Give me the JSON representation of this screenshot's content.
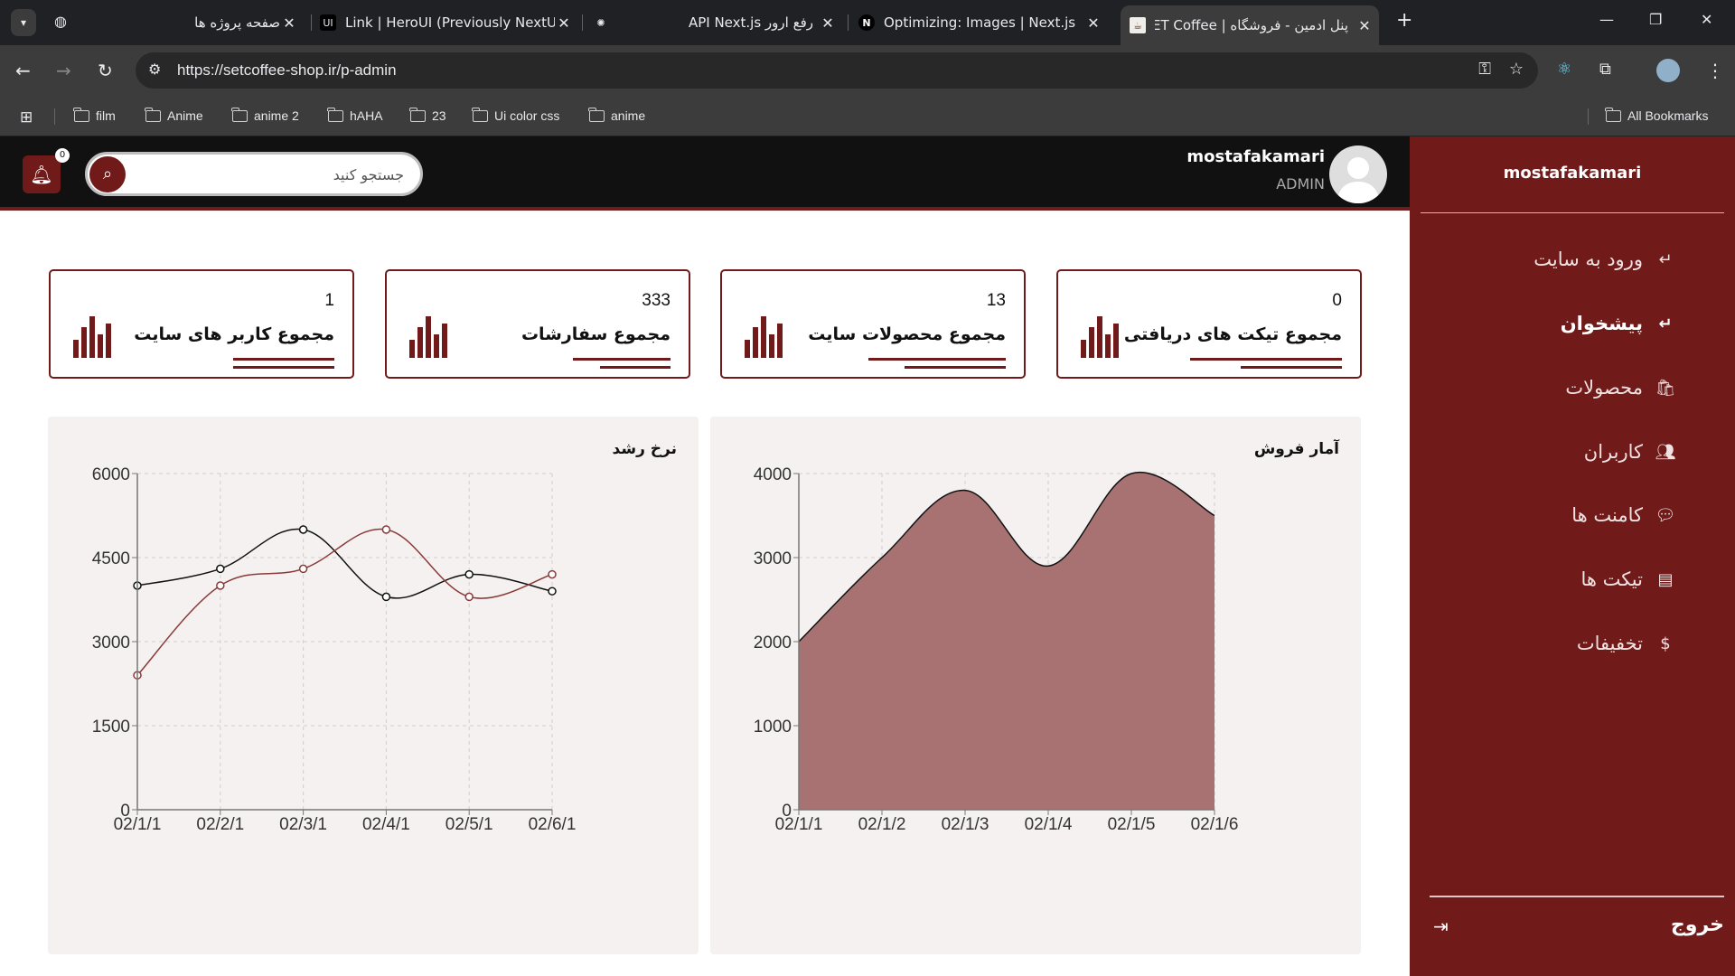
{
  "browser": {
    "tabs": [
      {
        "title": "صفحه پروژه ها",
        "icon": "globe-icon"
      },
      {
        "title": "Link | HeroUI (Previously NextUI)",
        "icon": "heroui-icon"
      },
      {
        "title": "رفع ارور API Next.js",
        "icon": "openai-icon"
      },
      {
        "title": "Optimizing: Images | Next.js",
        "icon": "nextjs-icon"
      },
      {
        "title": "پنل ادمین - فروشگاه | SET Coffee",
        "icon": "coffee-icon"
      }
    ],
    "url": "https://setcoffee-shop.ir/p-admin",
    "bookmarks": [
      "film",
      "Anime",
      "anime 2",
      "hAHA",
      "23",
      "Ui color css",
      "anime"
    ],
    "all_bookmarks": "All Bookmarks"
  },
  "topbar": {
    "notification_count": "0",
    "search_placeholder": "جستجو کنید",
    "user_name": "mostafakamari",
    "user_role": "ADMIN"
  },
  "sidebar": {
    "user_name": "mostafakamari",
    "items": [
      {
        "label": "ورود به سایت",
        "icon": "return-arrow-icon"
      },
      {
        "label": "پیشخوان",
        "icon": "return-arrow-icon"
      },
      {
        "label": "محصولات",
        "icon": "shopping-bag-icon"
      },
      {
        "label": "کاربران",
        "icon": "users-icon"
      },
      {
        "label": "کامنت ها",
        "icon": "comments-icon"
      },
      {
        "label": "تیکت ها",
        "icon": "message-icon"
      },
      {
        "label": "تخفیفات",
        "icon": "dollar-icon"
      }
    ],
    "logout": "خروج"
  },
  "cards": [
    {
      "value": "0",
      "label": "مجموع تیکت های دریافتی"
    },
    {
      "value": "13",
      "label": "مجموع محصولات سایت"
    },
    {
      "value": "333",
      "label": "مجموع سفارشات"
    },
    {
      "value": "1",
      "label": "مجموع کاربر های سایت"
    }
  ],
  "colors": {
    "brand": "#711a1a",
    "area_fill": "#a87272",
    "line_secondary": "#8b3a3a",
    "panel_bg": "#f4f1f0"
  },
  "chart_data": [
    {
      "type": "area",
      "title": "آمار فروش",
      "x": [
        "02/1/1",
        "02/1/2",
        "02/1/3",
        "02/1/4",
        "02/1/5",
        "02/1/6"
      ],
      "series": [
        {
          "values": [
            2000,
            3000,
            3800,
            2900,
            4000,
            3500
          ]
        }
      ],
      "ylim": [
        0,
        4000
      ],
      "yticks": [
        0,
        1000,
        2000,
        3000,
        4000
      ],
      "grid": true
    },
    {
      "type": "line",
      "title": "نرخ رشد",
      "x": [
        "02/1/1",
        "02/2/1",
        "02/3/1",
        "02/4/1",
        "02/5/1",
        "02/6/1"
      ],
      "series": [
        {
          "values": [
            4000,
            4300,
            5000,
            3800,
            4200,
            3900
          ],
          "color": "#111111"
        },
        {
          "values": [
            2400,
            4000,
            4300,
            5000,
            3800,
            4200
          ],
          "color": "#8b3a3a"
        }
      ],
      "ylim": [
        0,
        6000
      ],
      "yticks": [
        0,
        1500,
        3000,
        4500,
        6000
      ],
      "grid": true
    }
  ]
}
